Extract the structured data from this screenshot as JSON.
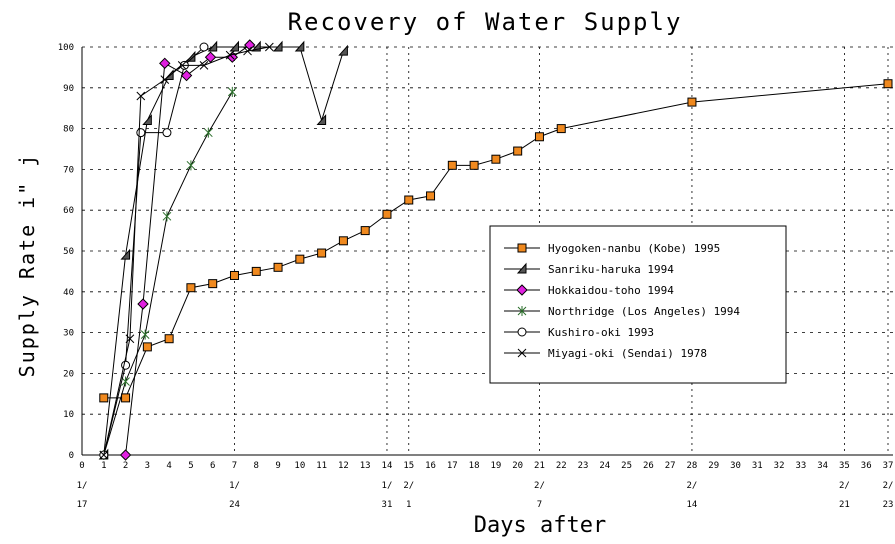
{
  "chart_data": {
    "type": "line",
    "title": "Recovery of Water Supply",
    "ylabel": "Supply Rate i\" j",
    "xlabel": "Days after",
    "xlim": [
      0,
      37
    ],
    "ylim": [
      0,
      100
    ],
    "xticks": [
      0,
      1,
      2,
      3,
      4,
      5,
      6,
      7,
      8,
      9,
      10,
      11,
      12,
      13,
      14,
      15,
      16,
      17,
      18,
      19,
      20,
      21,
      22,
      23,
      24,
      25,
      26,
      27,
      28,
      29,
      30,
      31,
      32,
      33,
      34,
      35,
      36,
      37
    ],
    "yticks": [
      0,
      10,
      20,
      30,
      40,
      50,
      60,
      70,
      80,
      90,
      100
    ],
    "date_ticks": [
      {
        "value": 0,
        "label": [
          "1/",
          "17"
        ]
      },
      {
        "value": 7,
        "label": [
          "1/",
          "24"
        ]
      },
      {
        "value": 14,
        "label": [
          "1/",
          "31"
        ]
      },
      {
        "value": 15,
        "label": [
          "2/",
          "1"
        ]
      },
      {
        "value": 21,
        "label": [
          "2/",
          "7"
        ]
      },
      {
        "value": 28,
        "label": [
          "2/",
          "14"
        ]
      },
      {
        "value": 35,
        "label": [
          "2/",
          "21"
        ]
      },
      {
        "value": 37,
        "label": [
          "2/",
          "23"
        ]
      }
    ],
    "grid": true,
    "series": [
      {
        "name": "Hyogoken-nanbu (Kobe) 1995",
        "marker": "square",
        "color": "#f0891e",
        "x": [
          1,
          2,
          3,
          4,
          5,
          6,
          7,
          8,
          9,
          10,
          11,
          12,
          13,
          14,
          15,
          16,
          17,
          18,
          19,
          20,
          21,
          22,
          28,
          37
        ],
        "values": [
          14,
          14,
          26.5,
          28.5,
          41,
          42,
          44,
          45,
          46,
          48,
          49.5,
          52.5,
          55,
          59,
          62.5,
          63.5,
          71,
          71,
          72.5,
          74.5,
          78,
          80,
          86.5,
          91
        ]
      },
      {
        "name": "Sanriku-haruka 1994",
        "marker": "triangle",
        "color": "#555555",
        "x": [
          1,
          2,
          3,
          4,
          5,
          6,
          7,
          8,
          9,
          10,
          11,
          12
        ],
        "values": [
          0,
          49,
          82,
          93,
          97.5,
          100,
          100,
          100,
          100,
          100,
          82,
          99
        ]
      },
      {
        "name": "Hokkaidou-toho 1994",
        "marker": "diamond",
        "color": "#e020e0",
        "x": [
          2,
          2.8,
          3.8,
          4.8,
          5.9,
          6.9,
          7.7
        ],
        "values": [
          0,
          37,
          96,
          93,
          97.5,
          97.5,
          100.5
        ]
      },
      {
        "name": "Northridge (Los Angeles) 1994",
        "marker": "star",
        "color": "#2a6e2a",
        "x": [
          1,
          2,
          2.9,
          3.9,
          5,
          5.8,
          6.9
        ],
        "values": [
          0,
          18,
          29.5,
          58.5,
          71,
          79,
          89
        ]
      },
      {
        "name": "Kushiro-oki 1993",
        "marker": "circle",
        "color": "#ffffff",
        "x": [
          1,
          2,
          2.7,
          3.9,
          4.7,
          5.6
        ],
        "values": [
          0,
          22,
          79,
          79,
          95.5,
          100
        ]
      },
      {
        "name": "Miyagi-oki (Sendai) 1978",
        "marker": "cross",
        "color": "#000000",
        "x": [
          1,
          2.2,
          2.7,
          3.8,
          4.6,
          5.6,
          6.8,
          7.6,
          8.6
        ],
        "values": [
          0,
          28.5,
          88,
          92,
          95.5,
          95.5,
          98,
          99,
          100
        ]
      }
    ]
  }
}
